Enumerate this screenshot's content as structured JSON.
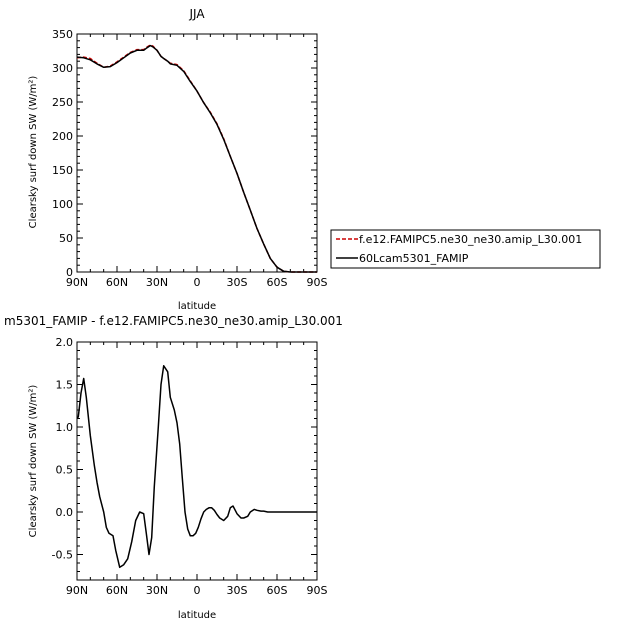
{
  "chart_data": [
    {
      "type": "line",
      "title": "JJA",
      "xlabel": "latitude",
      "ylabel": "Clearsky surf down SW (W/m²)",
      "xlim": [
        90,
        -90
      ],
      "ylim": [
        0,
        350
      ],
      "x_ticks": [
        "90N",
        "60N",
        "30N",
        "0",
        "30S",
        "60S",
        "90S"
      ],
      "x_tick_values": [
        90,
        60,
        30,
        0,
        -30,
        -60,
        -90
      ],
      "y_ticks": [
        "0",
        "50",
        "100",
        "150",
        "200",
        "250",
        "300",
        "350"
      ],
      "y_tick_values": [
        0,
        50,
        100,
        150,
        200,
        250,
        300,
        350
      ],
      "legend_position": "right",
      "x": [
        90,
        85,
        80,
        75,
        70,
        65,
        60,
        55,
        50,
        45,
        40,
        38,
        35,
        33,
        30,
        27,
        25,
        22,
        20,
        15,
        10,
        5,
        0,
        -5,
        -10,
        -15,
        -20,
        -25,
        -30,
        -35,
        -40,
        -45,
        -50,
        -55,
        -60,
        -65,
        -70,
        -75,
        -80,
        -85,
        -90
      ],
      "series": [
        {
          "name": "f.e12.FAMIPC5.ne30_ne30.amip_L30.001",
          "color": "#cc0000",
          "dash": "dashed",
          "values": [
            315,
            316,
            314,
            307,
            301,
            303,
            309,
            316,
            323,
            327,
            327,
            330,
            334,
            332,
            326,
            317,
            314,
            310,
            307,
            305,
            296,
            281,
            266,
            249,
            235,
            218,
            196,
            170,
            145,
            117,
            91,
            64,
            41,
            20,
            7,
            1,
            0,
            0,
            0,
            0,
            0
          ]
        },
        {
          "name": "60Lcam5301_FAMIP",
          "color": "#000000",
          "dash": "solid",
          "values": [
            316,
            315,
            312,
            306,
            301,
            302,
            308,
            315,
            322,
            326,
            326,
            329,
            333,
            331,
            326,
            317,
            314,
            310,
            306,
            304,
            295,
            280,
            266,
            249,
            234,
            217,
            195,
            170,
            145,
            117,
            91,
            64,
            41,
            20,
            7,
            1,
            0,
            0,
            0,
            0,
            0
          ]
        }
      ]
    },
    {
      "type": "line",
      "title": "m5301_FAMIP  -  f.e12.FAMIPC5.ne30_ne30.amip_L30.001",
      "xlabel": "latitude",
      "ylabel": "Clearsky surf down SW (W/m²)",
      "xlim": [
        90,
        -90
      ],
      "ylim": [
        -0.8,
        2.0
      ],
      "x_ticks": [
        "90N",
        "60N",
        "30N",
        "0",
        "30S",
        "60S",
        "90S"
      ],
      "x_tick_values": [
        90,
        60,
        30,
        0,
        -30,
        -60,
        -90
      ],
      "y_ticks": [
        "-0.5",
        "0.0",
        "0.5",
        "1.0",
        "1.5",
        "2.0"
      ],
      "y_tick_values": [
        -0.5,
        0.0,
        0.5,
        1.0,
        1.5,
        2.0
      ],
      "x": [
        90,
        89,
        87,
        85,
        83,
        80,
        77,
        75,
        73,
        70,
        68,
        66,
        63,
        61,
        58,
        55,
        52,
        49,
        46,
        43,
        40,
        38,
        36,
        34,
        32,
        29,
        27,
        25,
        22,
        20,
        17,
        15,
        13,
        11,
        9,
        7,
        5,
        3,
        1,
        -1,
        -3,
        -5,
        -7,
        -9,
        -11,
        -13,
        -15,
        -17,
        -20,
        -23,
        -25,
        -27,
        -30,
        -33,
        -35,
        -38,
        -40,
        -43,
        -45,
        -48,
        -50,
        -53,
        -55,
        -58,
        -60,
        -63,
        -66,
        -70,
        -75,
        -80,
        -85,
        -90
      ],
      "series": [
        {
          "name": "",
          "color": "#000000",
          "dash": "solid",
          "values": [
            1.1,
            1.12,
            1.4,
            1.57,
            1.35,
            0.9,
            0.55,
            0.35,
            0.18,
            0.0,
            -0.18,
            -0.25,
            -0.28,
            -0.45,
            -0.65,
            -0.62,
            -0.55,
            -0.35,
            -0.1,
            0.0,
            -0.02,
            -0.25,
            -0.5,
            -0.3,
            0.3,
            1.0,
            1.5,
            1.72,
            1.65,
            1.35,
            1.2,
            1.05,
            0.8,
            0.4,
            0.0,
            -0.2,
            -0.28,
            -0.28,
            -0.25,
            -0.18,
            -0.08,
            0.0,
            0.03,
            0.05,
            0.05,
            0.02,
            -0.03,
            -0.07,
            -0.1,
            -0.05,
            0.05,
            0.07,
            -0.02,
            -0.07,
            -0.07,
            -0.05,
            0.0,
            0.03,
            0.02,
            0.01,
            0.01,
            0.0,
            0.0,
            0.0,
            0.0,
            0.0,
            0.0,
            0.0,
            0.0,
            0.0,
            0.0,
            0.0
          ]
        }
      ]
    }
  ]
}
